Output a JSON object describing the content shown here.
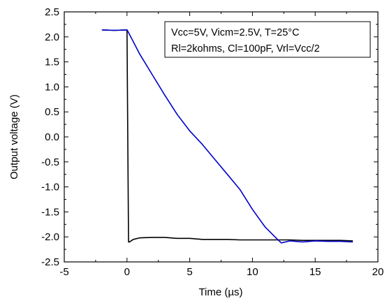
{
  "chart_data": {
    "type": "line",
    "title": "",
    "xlabel": "Time (µs)",
    "ylabel": "Output voltage (V)",
    "xlim": [
      -5,
      20
    ],
    "ylim": [
      -2.5,
      2.5
    ],
    "xticks": [
      -5,
      0,
      5,
      10,
      15,
      20
    ],
    "yticks": [
      2.5,
      2.0,
      1.5,
      1.0,
      0.5,
      0.0,
      -0.5,
      -1.0,
      -1.5,
      -2.0,
      -2.5
    ],
    "xtick_labels": [
      "-5",
      "0",
      "5",
      "10",
      "15",
      "20"
    ],
    "ytick_labels": [
      "2.5",
      "2.0",
      "1.5",
      "1.0",
      "0.5",
      "0.0",
      "-0.5",
      "-1.0",
      "-1.5",
      "-2.0",
      "-2.5"
    ],
    "grid": false,
    "annotation": {
      "lines": [
        "Vcc=5V, Vicm=2.5V, T=25°C",
        "Rl=2kohms, Cl=100pF, Vrl=Vcc/2"
      ],
      "placement": "top-right"
    },
    "series": [
      {
        "color": "#0000cc",
        "x": [
          -2.0,
          -1.0,
          0.0,
          0.05,
          0.3,
          1.0,
          2.0,
          3.0,
          4.0,
          5.0,
          6.0,
          7.0,
          8.0,
          9.0,
          10.0,
          11.0,
          12.0,
          12.3,
          13.0,
          14.0,
          15.0,
          16.0,
          17.0,
          18.0
        ],
        "y": [
          2.14,
          2.13,
          2.14,
          2.12,
          2.0,
          1.66,
          1.25,
          0.84,
          0.45,
          0.12,
          -0.15,
          -0.45,
          -0.75,
          -1.05,
          -1.45,
          -1.8,
          -2.05,
          -2.12,
          -2.08,
          -2.1,
          -2.08,
          -2.09,
          -2.09,
          -2.1
        ]
      },
      {
        "color": "#000000",
        "x": [
          -2.0,
          -1.0,
          0.0,
          0.12,
          0.2,
          0.5,
          1.0,
          2.0,
          3.0,
          4.0,
          5.0,
          6.0,
          7.0,
          8.0,
          9.0,
          10.0,
          11.0,
          12.0,
          13.0,
          14.0,
          15.0,
          16.0,
          17.0,
          18.0
        ],
        "y": [
          2.14,
          2.13,
          2.14,
          -2.1,
          -2.1,
          -2.05,
          -2.02,
          -2.01,
          -2.01,
          -2.03,
          -2.03,
          -2.05,
          -2.05,
          -2.05,
          -2.06,
          -2.06,
          -2.06,
          -2.06,
          -2.06,
          -2.07,
          -2.07,
          -2.07,
          -2.07,
          -2.08
        ]
      }
    ]
  }
}
